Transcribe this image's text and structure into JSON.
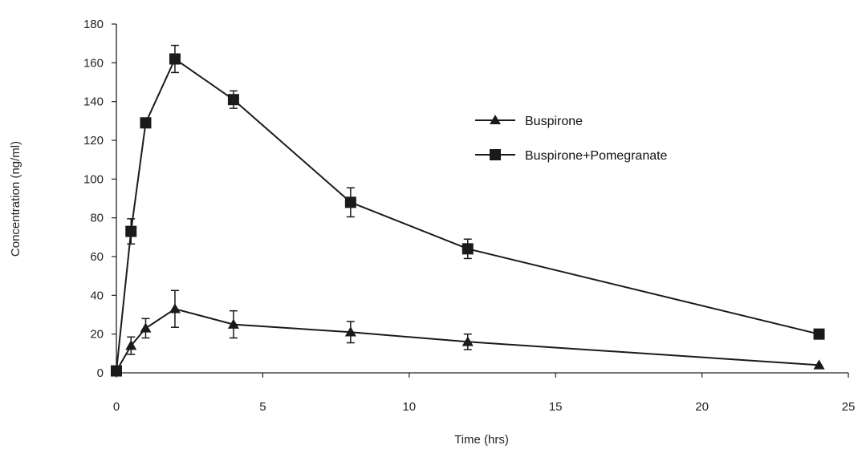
{
  "chart_data": {
    "type": "line",
    "title": "",
    "xlabel": "Time (hrs)",
    "ylabel": "Concentration (ng/ml)",
    "xlim": [
      0,
      25
    ],
    "ylim": [
      0,
      180
    ],
    "x_ticks": [
      0,
      5,
      10,
      15,
      20,
      25
    ],
    "y_ticks": [
      0,
      20,
      40,
      60,
      80,
      100,
      120,
      140,
      160,
      180
    ],
    "x_tick_labels": [
      "0",
      "5",
      "10",
      "15",
      "20",
      "25"
    ],
    "y_tick_labels": [
      "0",
      "20",
      "40",
      "60",
      "80",
      "100",
      "120",
      "140",
      "160",
      "180"
    ],
    "grid": false,
    "legend_position": "upper-right",
    "x": [
      0,
      0.5,
      1,
      2,
      4,
      8,
      12,
      24
    ],
    "series": [
      {
        "name": "Buspirone",
        "marker": "triangle",
        "values": [
          1,
          14,
          23,
          33,
          25,
          21,
          16,
          4
        ],
        "errors": [
          0,
          4.5,
          5,
          9.5,
          7,
          5.5,
          4,
          0
        ]
      },
      {
        "name": "Buspirone+Pomegranate",
        "marker": "square",
        "values": [
          1,
          73,
          129,
          162,
          141,
          88,
          64,
          20
        ],
        "errors": [
          0,
          6.5,
          0,
          7,
          4.5,
          7.5,
          5,
          0
        ]
      }
    ],
    "colors": {
      "line": "#1a1a1a",
      "axis": "#222222"
    }
  }
}
